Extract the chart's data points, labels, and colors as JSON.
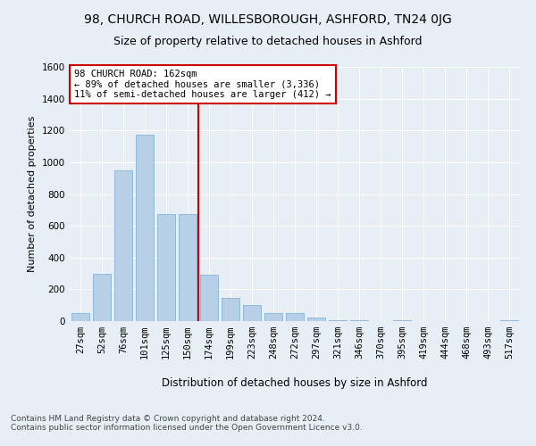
{
  "title": "98, CHURCH ROAD, WILLESBOROUGH, ASHFORD, TN24 0JG",
  "subtitle": "Size of property relative to detached houses in Ashford",
  "xlabel": "Distribution of detached houses by size in Ashford",
  "ylabel": "Number of detached properties",
  "bin_labels": [
    "27sqm",
    "52sqm",
    "76sqm",
    "101sqm",
    "125sqm",
    "150sqm",
    "174sqm",
    "199sqm",
    "223sqm",
    "248sqm",
    "272sqm",
    "297sqm",
    "321sqm",
    "346sqm",
    "370sqm",
    "395sqm",
    "419sqm",
    "444sqm",
    "468sqm",
    "493sqm",
    "517sqm"
  ],
  "bar_heights": [
    50,
    300,
    950,
    1175,
    675,
    675,
    290,
    145,
    100,
    50,
    50,
    20,
    5,
    5,
    0,
    5,
    0,
    0,
    0,
    0,
    5
  ],
  "bar_color": "#b8cfe8",
  "bar_edge_color": "#7aaad0",
  "bar_width": 0.85,
  "ylim": [
    0,
    1600
  ],
  "yticks": [
    0,
    200,
    400,
    600,
    800,
    1000,
    1200,
    1400,
    1600
  ],
  "property_line_color": "#cc0000",
  "property_line_x": 5.5,
  "annotation_text": "98 CHURCH ROAD: 162sqm\n← 89% of detached houses are smaller (3,336)\n11% of semi-detached houses are larger (412) →",
  "annotation_box_color": "#ffffff",
  "annotation_box_edge": "#cc0000",
  "footer_text": "Contains HM Land Registry data © Crown copyright and database right 2024.\nContains public sector information licensed under the Open Government Licence v3.0.",
  "bg_color": "#e8eef5",
  "plot_bg_color": "#e8eef5",
  "grid_color": "#ffffff",
  "title_fontsize": 10,
  "subtitle_fontsize": 9,
  "axis_label_fontsize": 8.5,
  "ylabel_fontsize": 8,
  "tick_fontsize": 7.5,
  "footer_fontsize": 6.5,
  "annotation_fontsize": 7.5
}
